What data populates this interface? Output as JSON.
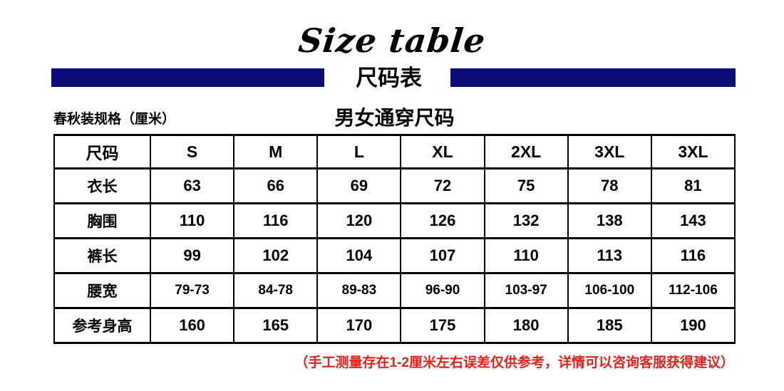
{
  "header": {
    "title_en": "Size table",
    "title_cn": "尺码表"
  },
  "chart_data": {
    "type": "table",
    "title": "男女通穿尺码",
    "unit_note": "春秋装规格（厘米）",
    "columns": [
      "尺码",
      "S",
      "M",
      "L",
      "XL",
      "2XL",
      "3XL",
      "3XL"
    ],
    "rows": [
      {
        "label": "衣长",
        "values": [
          "63",
          "66",
          "69",
          "72",
          "75",
          "78",
          "81"
        ]
      },
      {
        "label": "胸围",
        "values": [
          "110",
          "116",
          "120",
          "126",
          "132",
          "138",
          "143"
        ]
      },
      {
        "label": "裤长",
        "values": [
          "99",
          "102",
          "104",
          "107",
          "110",
          "113",
          "116"
        ]
      },
      {
        "label": "腰宽",
        "values": [
          "79-73",
          "84-78",
          "89-83",
          "96-90",
          "103-97",
          "106-100",
          "112-106"
        ]
      },
      {
        "label": "参考身高",
        "values": [
          "160",
          "165",
          "170",
          "175",
          "180",
          "185",
          "190"
        ]
      }
    ]
  },
  "footnote": "（手工测量存在1-2厘米左右误差仅供参考，详情可以咨询客服获得建议）",
  "colors": {
    "banner_blue": "#0c0c77",
    "footnote_red": "#e71f19",
    "text_black": "#000000"
  }
}
